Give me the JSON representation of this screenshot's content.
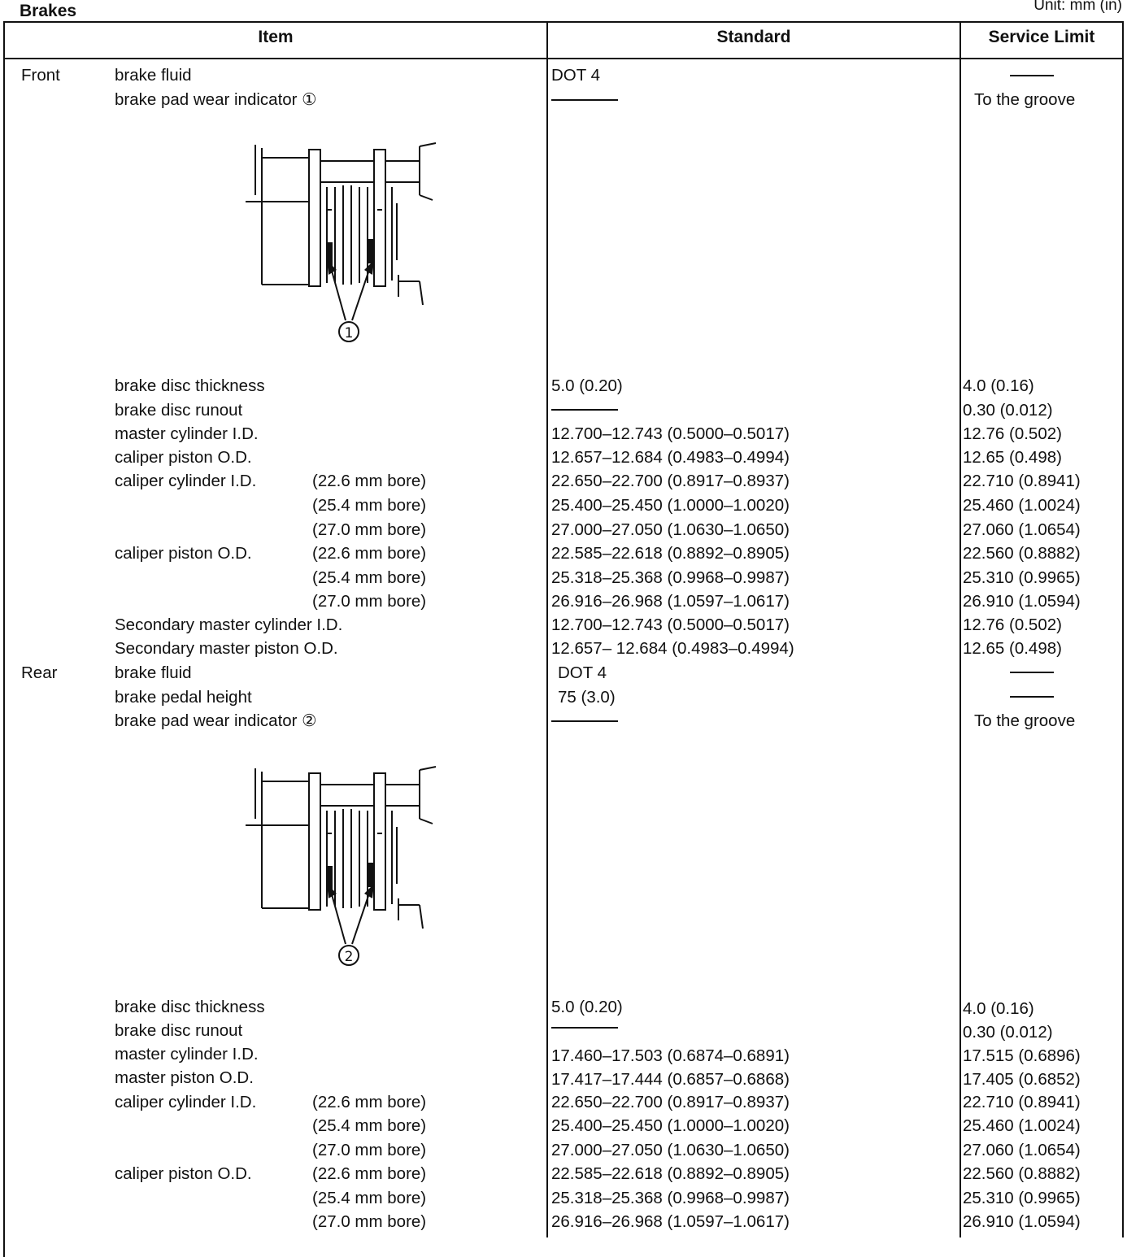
{
  "section_title": "Brakes",
  "unit_label": "Unit: mm (in)",
  "headers": {
    "item": "Item",
    "standard": "Standard",
    "service_limit": "Service Limit"
  },
  "front": {
    "group": "Front",
    "brake_fluid": {
      "item": "brake fluid",
      "standard": "DOT 4"
    },
    "pad_wear": {
      "item": "brake pad wear indicator ①",
      "limit": "To the groove",
      "callout": "①"
    },
    "disc_thickness": {
      "item": "brake disc thickness",
      "standard": "5.0 (0.20)",
      "limit": "4.0 (0.16)"
    },
    "disc_runout": {
      "item": "brake disc runout",
      "limit": "0.30 (0.012)"
    },
    "master_cyl_id": {
      "item": "master cylinder I.D.",
      "standard": "12.700–12.743 (0.5000–0.5017)",
      "limit": "12.76 (0.502)"
    },
    "caliper_piston_od": {
      "item": "caliper piston O.D.",
      "standard": "12.657–12.684 (0.4983–0.4994)",
      "limit": "12.65 (0.498)"
    },
    "caliper_cyl_id": {
      "item": "caliper cylinder I.D.",
      "rows": [
        {
          "bore": "(22.6 mm bore)",
          "standard": "22.650–22.700 (0.8917–0.8937)",
          "limit": "22.710 (0.8941)"
        },
        {
          "bore": "(25.4 mm bore)",
          "standard": "25.400–25.450 (1.0000–1.0020)",
          "limit": "25.460 (1.0024)"
        },
        {
          "bore": "(27.0 mm bore)",
          "standard": "27.000–27.050 (1.0630–1.0650)",
          "limit": "27.060 (1.0654)"
        }
      ]
    },
    "caliper_piston_od_bores": {
      "item": "caliper piston O.D.",
      "rows": [
        {
          "bore": "(22.6 mm bore)",
          "standard": "22.585–22.618 (0.8892–0.8905)",
          "limit": "22.560 (0.8882)"
        },
        {
          "bore": "(25.4 mm bore)",
          "standard": "25.318–25.368 (0.9968–0.9987)",
          "limit": "25.310 (0.9965)"
        },
        {
          "bore": "(27.0 mm bore)",
          "standard": "26.916–26.968 (1.0597–1.0617)",
          "limit": "26.910 (1.0594)"
        }
      ]
    },
    "secondary_master_cyl_id": {
      "item": "Secondary master cylinder I.D.",
      "standard": "12.700–12.743 (0.5000–0.5017)",
      "limit": "12.76 (0.502)"
    },
    "secondary_master_piston_od": {
      "item": "Secondary master piston O.D.",
      "standard": "12.657– 12.684 (0.4983–0.4994)",
      "limit": "12.65 (0.498)"
    }
  },
  "rear": {
    "group": "Rear",
    "brake_fluid": {
      "item": "brake fluid",
      "standard": "DOT 4"
    },
    "pedal_height": {
      "item": "brake pedal height",
      "standard": "75 (3.0)"
    },
    "pad_wear": {
      "item": "brake pad wear indicator ②",
      "limit": "To the groove",
      "callout": "②"
    },
    "disc_thickness": {
      "item": "brake disc thickness",
      "standard": "5.0 (0.20)",
      "limit": "4.0 (0.16)"
    },
    "disc_runout": {
      "item": "brake disc runout",
      "limit": "0.30 (0.012)"
    },
    "master_cyl_id": {
      "item": "master cylinder I.D.",
      "standard": "17.460–17.503 (0.6874–0.6891)",
      "limit": "17.515 (0.6896)"
    },
    "master_piston_od": {
      "item": "master piston O.D.",
      "standard": "17.417–17.444 (0.6857–0.6868)",
      "limit": "17.405 (0.6852)"
    },
    "caliper_cyl_id": {
      "item": "caliper cylinder I.D.",
      "rows": [
        {
          "bore": "(22.6 mm bore)",
          "standard": "22.650–22.700 (0.8917–0.8937)",
          "limit": "22.710 (0.8941)"
        },
        {
          "bore": "(25.4 mm bore)",
          "standard": "25.400–25.450 (1.0000–1.0020)",
          "limit": "25.460 (1.0024)"
        },
        {
          "bore": "(27.0 mm bore)",
          "standard": "27.000–27.050 (1.0630–1.0650)",
          "limit": "27.060 (1.0654)"
        }
      ]
    },
    "caliper_piston_od_bores": {
      "item": "caliper piston O.D.",
      "rows": [
        {
          "bore": "(22.6 mm bore)",
          "standard": "22.585–22.618 (0.8892–0.8905)",
          "limit": "22.560 (0.8882)"
        },
        {
          "bore": "(25.4 mm bore)",
          "standard": "25.318–25.368 (0.9968–0.9987)",
          "limit": "25.310 (0.9965)"
        },
        {
          "bore": "(27.0 mm bore)",
          "standard": "26.916–26.968 (1.0597–1.0617)",
          "limit": "26.910 (1.0594)"
        }
      ]
    }
  }
}
